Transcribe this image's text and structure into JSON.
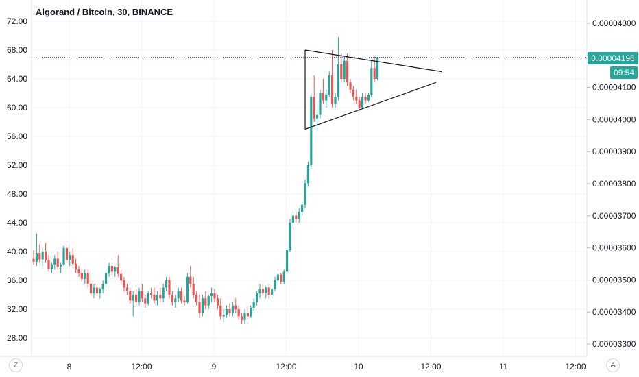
{
  "title": "Algorand / Bitcoin, 30, BINANCE",
  "chart_data": {
    "type": "candlestick",
    "symbol": "Algorand / Bitcoin",
    "interval": "30",
    "exchange": "BINANCE",
    "left_axis": {
      "ticks": [
        "72.00",
        "68.00",
        "64.00",
        "60.00",
        "56.00",
        "52.00",
        "48.00",
        "44.00",
        "40.00",
        "36.00",
        "32.00",
        "28.00"
      ],
      "range": [
        26.0,
        74.0
      ]
    },
    "right_axis": {
      "ticks": [
        "0.00004300",
        "0.00004200",
        "0.00004100",
        "0.00004000",
        "0.00003900",
        "0.00003800",
        "0.00003700",
        "0.00003600",
        "0.00003500",
        "0.00003400",
        "0.00003300"
      ]
    },
    "x_axis": {
      "ticks": [
        "8",
        "12:00",
        "9",
        "12:00",
        "10",
        "12:00",
        "11",
        "12:00"
      ]
    },
    "current_price": "0.00004196",
    "countdown": "09:54",
    "current_value_left": 67.0,
    "grid": true,
    "colors": {
      "up": "#26a69a",
      "down": "#ef5350",
      "accent": "#2962ff"
    },
    "candles": [
      [
        39.0,
        40.2,
        38.2,
        38.6
      ],
      [
        38.6,
        42.5,
        38.0,
        39.8
      ],
      [
        39.8,
        41.0,
        38.5,
        38.9
      ],
      [
        38.9,
        40.5,
        38.0,
        40.0
      ],
      [
        40.0,
        41.2,
        38.5,
        38.8
      ],
      [
        38.8,
        39.5,
        37.2,
        37.6
      ],
      [
        37.6,
        38.5,
        37.0,
        38.2
      ],
      [
        38.2,
        39.5,
        37.5,
        39.0
      ],
      [
        39.0,
        40.0,
        37.5,
        37.9
      ],
      [
        37.9,
        38.5,
        37.0,
        38.2
      ],
      [
        38.2,
        40.8,
        38.0,
        40.5
      ],
      [
        40.5,
        41.0,
        38.5,
        38.8
      ],
      [
        38.8,
        40.0,
        38.0,
        39.5
      ],
      [
        39.5,
        40.5,
        38.0,
        38.3
      ],
      [
        38.3,
        39.0,
        37.0,
        37.5
      ],
      [
        37.5,
        38.0,
        36.5,
        37.0
      ],
      [
        37.0,
        37.5,
        35.8,
        36.2
      ],
      [
        36.2,
        37.5,
        35.5,
        37.0
      ],
      [
        37.0,
        37.5,
        35.0,
        35.5
      ],
      [
        35.5,
        36.0,
        33.8,
        34.2
      ],
      [
        34.2,
        35.5,
        33.5,
        35.0
      ],
      [
        35.0,
        35.5,
        33.8,
        34.2
      ],
      [
        34.2,
        35.0,
        33.5,
        34.8
      ],
      [
        34.8,
        36.0,
        34.2,
        35.5
      ],
      [
        35.5,
        37.5,
        35.0,
        37.0
      ],
      [
        37.0,
        38.5,
        36.5,
        38.0
      ],
      [
        38.0,
        38.5,
        36.8,
        37.2
      ],
      [
        37.2,
        38.0,
        36.5,
        37.8
      ],
      [
        37.8,
        39.5,
        36.5,
        36.9
      ],
      [
        36.9,
        37.5,
        35.5,
        36.0
      ],
      [
        36.0,
        36.5,
        34.5,
        35.0
      ],
      [
        35.0,
        35.5,
        34.0,
        34.5
      ],
      [
        34.5,
        35.0,
        32.8,
        33.2
      ],
      [
        33.2,
        34.5,
        31.0,
        34.0
      ],
      [
        34.0,
        34.8,
        32.5,
        33.0
      ],
      [
        33.0,
        35.0,
        32.5,
        34.5
      ],
      [
        34.5,
        35.5,
        33.0,
        33.5
      ],
      [
        33.5,
        34.0,
        32.2,
        32.8
      ],
      [
        32.8,
        34.5,
        32.5,
        34.2
      ],
      [
        34.2,
        35.0,
        33.5,
        34.0
      ],
      [
        34.0,
        35.0,
        32.8,
        33.2
      ],
      [
        33.2,
        34.5,
        32.5,
        34.0
      ],
      [
        34.0,
        35.0,
        33.0,
        33.5
      ],
      [
        33.5,
        35.5,
        33.0,
        35.0
      ],
      [
        35.0,
        36.5,
        34.5,
        36.0
      ],
      [
        36.0,
        36.5,
        33.5,
        34.0
      ],
      [
        34.0,
        34.5,
        32.5,
        33.0
      ],
      [
        33.0,
        34.0,
        32.2,
        33.5
      ],
      [
        33.5,
        35.0,
        33.0,
        34.5
      ],
      [
        34.5,
        35.0,
        32.8,
        33.2
      ],
      [
        33.2,
        33.8,
        32.5,
        33.0
      ],
      [
        33.0,
        37.0,
        32.8,
        36.5
      ],
      [
        36.5,
        38.0,
        35.0,
        35.5
      ],
      [
        35.5,
        36.5,
        33.5,
        34.0
      ],
      [
        34.0,
        34.5,
        32.5,
        33.0
      ],
      [
        33.0,
        34.0,
        30.8,
        31.5
      ],
      [
        31.5,
        34.0,
        31.0,
        33.5
      ],
      [
        33.5,
        34.5,
        32.0,
        32.5
      ],
      [
        32.5,
        34.0,
        32.0,
        33.8
      ],
      [
        33.8,
        35.0,
        33.0,
        34.2
      ],
      [
        34.2,
        34.8,
        33.0,
        33.5
      ],
      [
        33.5,
        34.0,
        32.0,
        32.5
      ],
      [
        32.5,
        33.5,
        30.5,
        31.0
      ],
      [
        31.0,
        32.0,
        30.2,
        31.2
      ],
      [
        31.2,
        32.5,
        30.8,
        32.0
      ],
      [
        32.0,
        32.8,
        31.0,
        31.5
      ],
      [
        31.5,
        33.0,
        31.0,
        32.5
      ],
      [
        32.5,
        33.5,
        31.5,
        32.0
      ],
      [
        32.0,
        32.5,
        30.5,
        31.0
      ],
      [
        31.0,
        31.5,
        30.0,
        30.5
      ],
      [
        30.5,
        32.0,
        30.0,
        31.5
      ],
      [
        31.5,
        32.5,
        30.5,
        31.0
      ],
      [
        31.0,
        32.5,
        30.8,
        32.2
      ],
      [
        32.2,
        33.5,
        31.8,
        33.0
      ],
      [
        33.0,
        34.5,
        32.5,
        34.2
      ],
      [
        34.2,
        35.5,
        33.5,
        34.8
      ],
      [
        34.8,
        35.5,
        33.8,
        34.2
      ],
      [
        34.2,
        35.2,
        33.5,
        35.0
      ],
      [
        35.0,
        35.5,
        33.5,
        34.0
      ],
      [
        34.0,
        35.0,
        33.5,
        34.8
      ],
      [
        34.8,
        36.5,
        34.5,
        36.0
      ],
      [
        36.0,
        37.0,
        35.5,
        36.8
      ],
      [
        36.8,
        37.0,
        35.5,
        35.8
      ],
      [
        35.8,
        37.5,
        35.5,
        37.2
      ],
      [
        37.2,
        40.5,
        37.0,
        40.2
      ],
      [
        40.2,
        44.5,
        40.0,
        44.0
      ],
      [
        44.0,
        45.5,
        43.5,
        45.0
      ],
      [
        45.0,
        45.5,
        44.0,
        44.5
      ],
      [
        44.5,
        46.0,
        44.0,
        45.5
      ],
      [
        45.5,
        47.0,
        45.0,
        46.5
      ],
      [
        46.5,
        50.0,
        46.0,
        49.5
      ],
      [
        49.5,
        52.5,
        49.0,
        52.0
      ],
      [
        52.0,
        62.0,
        51.5,
        61.5
      ],
      [
        61.5,
        64.5,
        58.0,
        58.5
      ],
      [
        58.5,
        60.5,
        57.0,
        59.0
      ],
      [
        59.0,
        62.5,
        58.5,
        62.0
      ],
      [
        62.0,
        64.0,
        60.5,
        61.0
      ],
      [
        61.0,
        62.5,
        60.0,
        61.8
      ],
      [
        61.8,
        65.0,
        61.5,
        64.5
      ],
      [
        64.5,
        68.0,
        60.0,
        60.5
      ],
      [
        60.5,
        62.0,
        60.0,
        61.5
      ],
      [
        61.5,
        69.8,
        61.0,
        66.0
      ],
      [
        66.0,
        67.5,
        63.5,
        64.0
      ],
      [
        64.0,
        67.0,
        63.5,
        66.5
      ],
      [
        66.5,
        67.5,
        63.0,
        63.5
      ],
      [
        63.5,
        64.0,
        62.0,
        62.5
      ],
      [
        62.5,
        63.0,
        61.0,
        61.5
      ],
      [
        61.5,
        62.5,
        60.5,
        61.0
      ],
      [
        61.0,
        61.5,
        59.5,
        60.0
      ],
      [
        60.0,
        62.0,
        59.8,
        61.5
      ],
      [
        61.5,
        62.0,
        60.5,
        61.0
      ],
      [
        61.0,
        62.0,
        60.8,
        61.8
      ],
      [
        61.8,
        66.5,
        61.5,
        65.5
      ],
      [
        65.5,
        67.2,
        63.5,
        64.0
      ],
      [
        64.0,
        67.0,
        63.8,
        67.0
      ]
    ],
    "pattern": "symmetrical triangle"
  }
}
